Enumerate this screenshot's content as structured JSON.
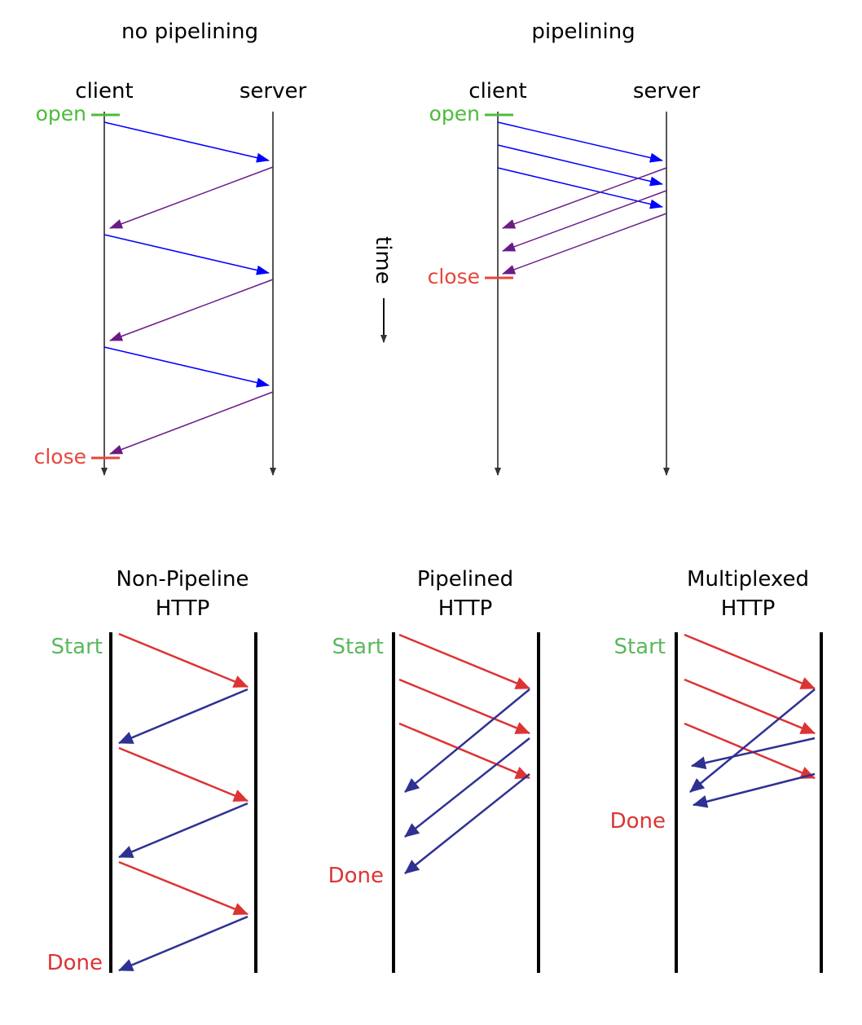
{
  "top": {
    "left": {
      "title": "no pipelining",
      "client": "client",
      "server": "server",
      "open": "open",
      "close": "close"
    },
    "right": {
      "title": "pipelining",
      "client": "client",
      "server": "server",
      "open": "open",
      "close": "close"
    },
    "time_label": "time"
  },
  "bottom": [
    {
      "title_line1": "Non-Pipeline",
      "title_line2": "HTTP",
      "start": "Start",
      "done": "Done"
    },
    {
      "title_line1": "Pipelined",
      "title_line2": "HTTP",
      "start": "Start",
      "done": "Done"
    },
    {
      "title_line1": "Multiplexed",
      "title_line2": "HTTP",
      "start": "Start",
      "done": "Done"
    }
  ],
  "colors": {
    "request_top": "#0000ff",
    "response_top": "#6a1b86",
    "open": "#4dbb3a",
    "close": "#e8453c",
    "request_bottom": "#dd3333",
    "response_bottom": "#2e3192",
    "start": "#5cb85c",
    "done": "#dd3333"
  }
}
